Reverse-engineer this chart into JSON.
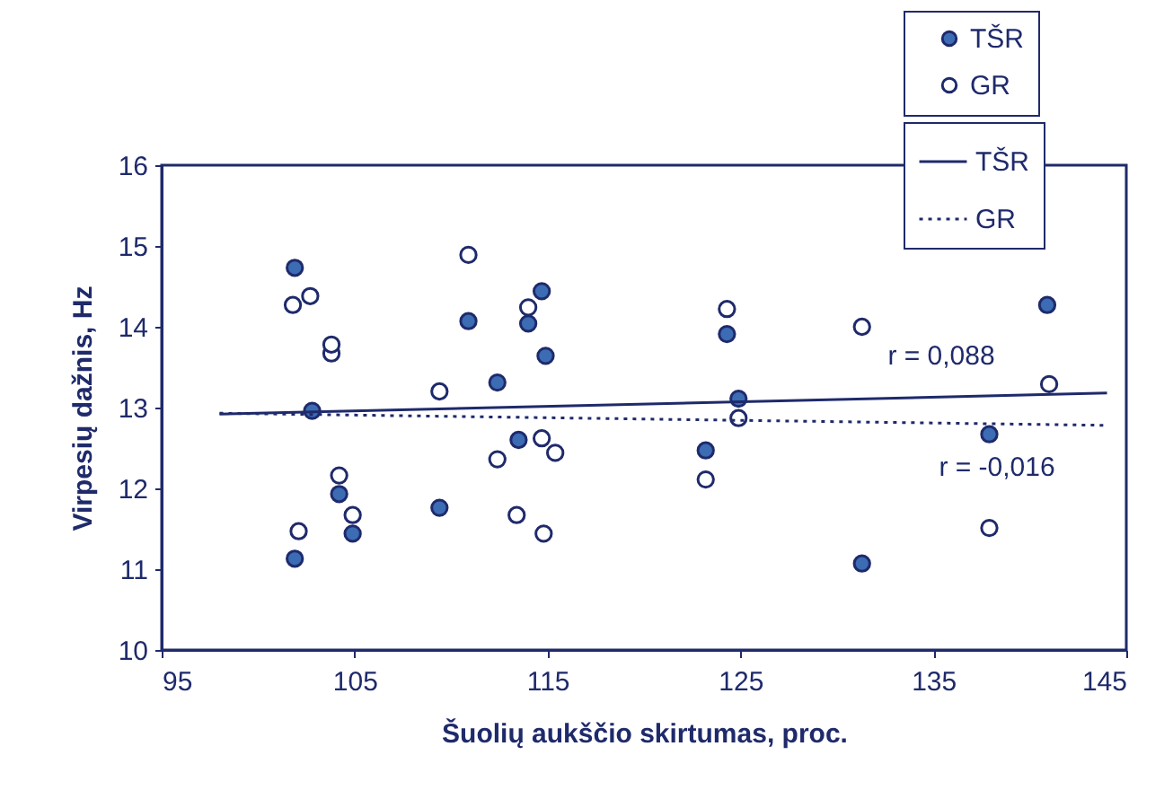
{
  "chart_data": {
    "type": "scatter",
    "xlabel": "Šuolių aukščio skirtumas, proc.",
    "ylabel": "Virpesių dažnis, Hz",
    "xlim": [
      95,
      145
    ],
    "xticks": [
      95,
      105,
      115,
      125,
      135,
      145
    ],
    "ylim": [
      10,
      16
    ],
    "yticks": [
      10,
      11,
      12,
      13,
      14,
      15,
      16
    ],
    "legend": "top right",
    "series": [
      {
        "name": "TŠR",
        "color": "#3b6cb4",
        "marker": "circle",
        "x": [
          101.9,
          101.9,
          102.8,
          104.2,
          104.9,
          109.4,
          110.9,
          112.4,
          113.5,
          114.0,
          114.7,
          114.9,
          123.2,
          124.3,
          124.9,
          131.3,
          137.9,
          140.9
        ],
        "values": [
          14.73,
          11.13,
          12.96,
          11.93,
          11.44,
          11.76,
          14.07,
          13.31,
          12.6,
          14.04,
          14.44,
          13.64,
          12.47,
          13.91,
          13.11,
          11.07,
          12.67,
          14.27
        ]
      },
      {
        "name": "GR",
        "color": "#ffffff",
        "marker": "circle",
        "x": [
          101.8,
          102.7,
          103.8,
          103.8,
          104.2,
          104.9,
          102.1,
          109.4,
          110.9,
          112.4,
          113.4,
          114.0,
          114.7,
          114.8,
          115.4,
          123.2,
          124.3,
          124.9,
          131.3,
          137.9,
          141.0
        ],
        "values": [
          14.27,
          14.38,
          13.67,
          13.78,
          12.16,
          11.67,
          11.47,
          13.2,
          14.89,
          12.36,
          11.67,
          14.24,
          12.62,
          11.44,
          12.44,
          12.11,
          14.22,
          12.87,
          14.0,
          11.51,
          13.29
        ]
      },
      {
        "name": "TŠR",
        "type": "line",
        "color": "#1f2a6b",
        "line_style": "solid",
        "x": [
          98,
          144
        ],
        "values": [
          12.92,
          13.18
        ]
      },
      {
        "name": "GR",
        "type": "line",
        "color": "#1f2a6b",
        "line_style": "dotted",
        "x": [
          98,
          144
        ],
        "values": [
          12.93,
          12.78
        ]
      }
    ],
    "annotations": [
      "r = 0,088",
      "r = -0,016"
    ]
  }
}
